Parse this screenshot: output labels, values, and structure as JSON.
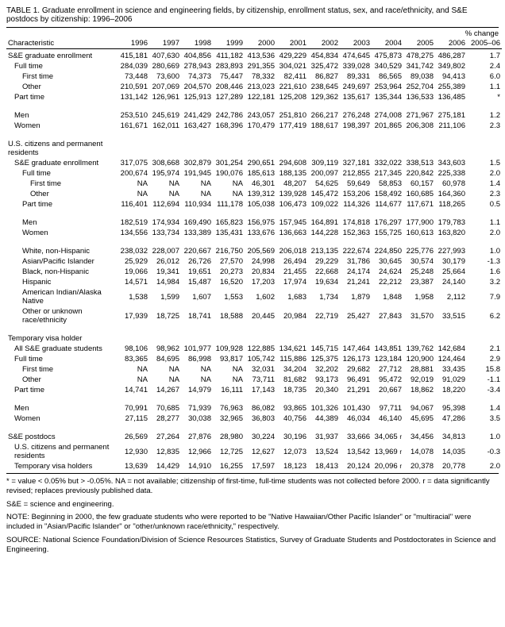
{
  "title": "TABLE 1.  Graduate enrollment in science and engineering fields, by citizenship, enrollment status, sex, and race/ethnicity, and S&E postdocs by citizenship: 1996–2006",
  "header": {
    "characteristic": "Characteristic",
    "years": [
      "1996",
      "1997",
      "1998",
      "1999",
      "2000",
      "2001",
      "2002",
      "2003",
      "2004",
      "2005",
      "2006"
    ],
    "pct_change_top": "% change",
    "pct_change_bottom": "2005–06"
  },
  "rows": [
    {
      "label": "S&E graduate enrollment",
      "indent": 0,
      "vals": [
        "415,181",
        "407,630",
        "404,856",
        "411,182",
        "413,536",
        "429,229",
        "454,834",
        "474,645",
        "475,873",
        "478,275",
        "486,287"
      ],
      "pct": "1.7"
    },
    {
      "label": "Full time",
      "indent": 1,
      "vals": [
        "284,039",
        "280,669",
        "278,943",
        "283,893",
        "291,355",
        "304,021",
        "325,472",
        "339,028",
        "340,529",
        "341,742",
        "349,802"
      ],
      "pct": "2.4"
    },
    {
      "label": "First time",
      "indent": 2,
      "vals": [
        "73,448",
        "73,600",
        "74,373",
        "75,447",
        "78,332",
        "82,411",
        "86,827",
        "89,331",
        "86,565",
        "89,038",
        "94,413"
      ],
      "pct": "6.0"
    },
    {
      "label": "Other",
      "indent": 2,
      "vals": [
        "210,591",
        "207,069",
        "204,570",
        "208,446",
        "213,023",
        "221,610",
        "238,645",
        "249,697",
        "253,964",
        "252,704",
        "255,389"
      ],
      "pct": "1.1"
    },
    {
      "label": "Part time",
      "indent": 1,
      "vals": [
        "131,142",
        "126,961",
        "125,913",
        "127,289",
        "122,181",
        "125,208",
        "129,362",
        "135,617",
        "135,344",
        "136,533",
        "136,485"
      ],
      "pct": "*"
    },
    {
      "spacer": true
    },
    {
      "label": "Men",
      "indent": 1,
      "vals": [
        "253,510",
        "245,619",
        "241,429",
        "242,786",
        "243,057",
        "251,810",
        "266,217",
        "276,248",
        "274,008",
        "271,967",
        "275,181"
      ],
      "pct": "1.2"
    },
    {
      "label": "Women",
      "indent": 1,
      "vals": [
        "161,671",
        "162,011",
        "163,427",
        "168,396",
        "170,479",
        "177,419",
        "188,617",
        "198,397",
        "201,865",
        "206,308",
        "211,106"
      ],
      "pct": "2.3"
    },
    {
      "spacer": true
    },
    {
      "label": "U.S. citizens and permanent residents",
      "indent": 0,
      "vals": [
        "",
        "",
        "",
        "",
        "",
        "",
        "",
        "",
        "",
        "",
        ""
      ],
      "pct": ""
    },
    {
      "label": "S&E graduate enrollment",
      "indent": 1,
      "vals": [
        "317,075",
        "308,668",
        "302,879",
        "301,254",
        "290,651",
        "294,608",
        "309,119",
        "327,181",
        "332,022",
        "338,513",
        "343,603"
      ],
      "pct": "1.5"
    },
    {
      "label": "Full time",
      "indent": 2,
      "vals": [
        "200,674",
        "195,974",
        "191,945",
        "190,076",
        "185,613",
        "188,135",
        "200,097",
        "212,855",
        "217,345",
        "220,842",
        "225,338"
      ],
      "pct": "2.0"
    },
    {
      "label": "First time",
      "indent": 3,
      "vals": [
        "NA",
        "NA",
        "NA",
        "NA",
        "46,301",
        "48,207",
        "54,625",
        "59,649",
        "58,853",
        "60,157",
        "60,978"
      ],
      "pct": "1.4"
    },
    {
      "label": "Other",
      "indent": 3,
      "vals": [
        "NA",
        "NA",
        "NA",
        "NA",
        "139,312",
        "139,928",
        "145,472",
        "153,206",
        "158,492",
        "160,685",
        "164,360"
      ],
      "pct": "2.3"
    },
    {
      "label": "Part time",
      "indent": 2,
      "vals": [
        "116,401",
        "112,694",
        "110,934",
        "111,178",
        "105,038",
        "106,473",
        "109,022",
        "114,326",
        "114,677",
        "117,671",
        "118,265"
      ],
      "pct": "0.5"
    },
    {
      "spacer": true
    },
    {
      "label": "Men",
      "indent": 2,
      "vals": [
        "182,519",
        "174,934",
        "169,490",
        "165,823",
        "156,975",
        "157,945",
        "164,891",
        "174,818",
        "176,297",
        "177,900",
        "179,783"
      ],
      "pct": "1.1"
    },
    {
      "label": "Women",
      "indent": 2,
      "vals": [
        "134,556",
        "133,734",
        "133,389",
        "135,431",
        "133,676",
        "136,663",
        "144,228",
        "152,363",
        "155,725",
        "160,613",
        "163,820"
      ],
      "pct": "2.0"
    },
    {
      "spacer": true
    },
    {
      "label": "White, non-Hispanic",
      "indent": 2,
      "vals": [
        "238,032",
        "228,007",
        "220,667",
        "216,750",
        "205,569",
        "206,018",
        "213,135",
        "222,674",
        "224,850",
        "225,776",
        "227,993"
      ],
      "pct": "1.0"
    },
    {
      "label": "Asian/Pacific Islander",
      "indent": 2,
      "vals": [
        "25,929",
        "26,012",
        "26,726",
        "27,570",
        "24,998",
        "26,494",
        "29,229",
        "31,786",
        "30,645",
        "30,574",
        "30,179"
      ],
      "pct": "-1.3"
    },
    {
      "label": "Black, non-Hispanic",
      "indent": 2,
      "vals": [
        "19,066",
        "19,341",
        "19,651",
        "20,273",
        "20,834",
        "21,455",
        "22,668",
        "24,174",
        "24,624",
        "25,248",
        "25,664"
      ],
      "pct": "1.6"
    },
    {
      "label": "Hispanic",
      "indent": 2,
      "vals": [
        "14,571",
        "14,984",
        "15,487",
        "16,520",
        "17,203",
        "17,974",
        "19,634",
        "21,241",
        "22,212",
        "23,387",
        "24,140"
      ],
      "pct": "3.2"
    },
    {
      "label": "American Indian/Alaska Native",
      "indent": 2,
      "vals": [
        "1,538",
        "1,599",
        "1,607",
        "1,553",
        "1,602",
        "1,683",
        "1,734",
        "1,879",
        "1,848",
        "1,958",
        "2,112"
      ],
      "pct": "7.9"
    },
    {
      "label": "Other or unknown race/ethnicity",
      "indent": 2,
      "vals": [
        "17,939",
        "18,725",
        "18,741",
        "18,588",
        "20,445",
        "20,984",
        "22,719",
        "25,427",
        "27,843",
        "31,570",
        "33,515"
      ],
      "pct": "6.2"
    },
    {
      "spacer": true
    },
    {
      "label": "Temporary visa holder",
      "indent": 0,
      "vals": [
        "",
        "",
        "",
        "",
        "",
        "",
        "",
        "",
        "",
        "",
        ""
      ],
      "pct": ""
    },
    {
      "label": "All S&E graduate students",
      "indent": 1,
      "vals": [
        "98,106",
        "98,962",
        "101,977",
        "109,928",
        "122,885",
        "134,621",
        "145,715",
        "147,464",
        "143,851",
        "139,762",
        "142,684"
      ],
      "pct": "2.1"
    },
    {
      "label": "Full time",
      "indent": 1,
      "vals": [
        "83,365",
        "84,695",
        "86,998",
        "93,817",
        "105,742",
        "115,886",
        "125,375",
        "126,173",
        "123,184",
        "120,900",
        "124,464"
      ],
      "pct": "2.9"
    },
    {
      "label": "First time",
      "indent": 2,
      "vals": [
        "NA",
        "NA",
        "NA",
        "NA",
        "32,031",
        "34,204",
        "32,202",
        "29,682",
        "27,712",
        "28,881",
        "33,435"
      ],
      "pct": "15.8"
    },
    {
      "label": "Other",
      "indent": 2,
      "vals": [
        "NA",
        "NA",
        "NA",
        "NA",
        "73,711",
        "81,682",
        "93,173",
        "96,491",
        "95,472",
        "92,019",
        "91,029"
      ],
      "pct": "-1.1"
    },
    {
      "label": "Part time",
      "indent": 1,
      "vals": [
        "14,741",
        "14,267",
        "14,979",
        "16,111",
        "17,143",
        "18,735",
        "20,340",
        "21,291",
        "20,667",
        "18,862",
        "18,220"
      ],
      "pct": "-3.4"
    },
    {
      "spacer": true
    },
    {
      "label": "Men",
      "indent": 1,
      "vals": [
        "70,991",
        "70,685",
        "71,939",
        "76,963",
        "86,082",
        "93,865",
        "101,326",
        "101,430",
        "97,711",
        "94,067",
        "95,398"
      ],
      "pct": "1.4"
    },
    {
      "label": "Women",
      "indent": 1,
      "vals": [
        "27,115",
        "28,277",
        "30,038",
        "32,965",
        "36,803",
        "40,756",
        "44,389",
        "46,034",
        "46,140",
        "45,695",
        "47,286"
      ],
      "pct": "3.5"
    },
    {
      "spacer": true
    },
    {
      "label": "S&E postdocs",
      "indent": 0,
      "vals": [
        "26,569",
        "27,264",
        "27,876",
        "28,980",
        "30,224",
        "30,196",
        "31,937",
        "33,666",
        "34,065 r",
        "34,456",
        "34,813"
      ],
      "pct": "1.0"
    },
    {
      "label": "U.S. citizens and permanent residents",
      "indent": 1,
      "vals": [
        "12,930",
        "12,835",
        "12,966",
        "12,725",
        "12,627",
        "12,073",
        "13,524",
        "13,542",
        "13,969 r",
        "14,078",
        "14,035"
      ],
      "pct": "-0.3"
    },
    {
      "label": "Temporary visa holders",
      "indent": 1,
      "vals": [
        "13,639",
        "14,429",
        "14,910",
        "16,255",
        "17,597",
        "18,123",
        "18,413",
        "20,124",
        "20,096 r",
        "20,378",
        "20,778"
      ],
      "pct": "2.0"
    }
  ],
  "notes": {
    "n1": "* =  value < 0.05% but > -0.05%. NA = not available; citizenship of first-time, full-time students was not collected before 2000. r = data significantly revised; replaces previously published data.",
    "n2": "S&E = science and engineering.",
    "n3": "NOTE:  Beginning in 2000, the few graduate students who were reported to be \"Native Hawaiian/Other Pacific Islander\" or \"multiracial\" were included in \"Asian/Pacific Islander\" or \"other/unknown race/ethnicity,\" respectively.",
    "n4": "SOURCE:  National Science Foundation/Division of Science Resources Statistics, Survey of Graduate Students and Postdoctorates in Science and Engineering."
  }
}
